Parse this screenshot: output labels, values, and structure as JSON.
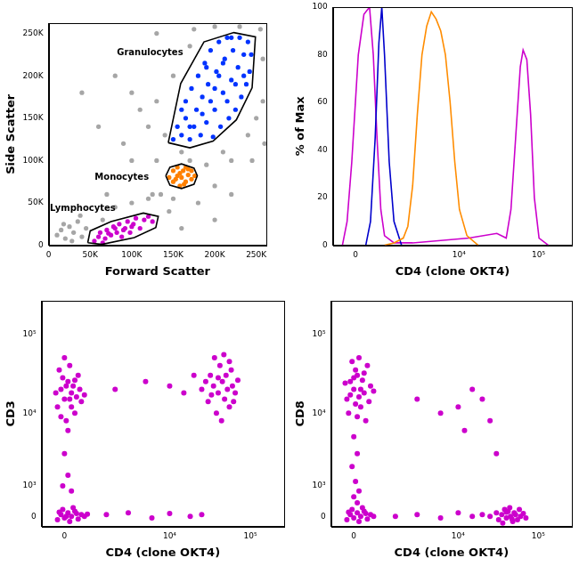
{
  "chart_data": [
    {
      "type": "scatter",
      "x_label": "Forward Scatter",
      "y_label": "Side Scatter",
      "grid": false,
      "tick_labels": true,
      "xlim": [
        0,
        262144
      ],
      "ylim": [
        0,
        262144
      ],
      "xticks": [
        0,
        {
          "value": 50000,
          "label": "50K"
        },
        {
          "value": 100000,
          "label": "100K"
        },
        {
          "value": 150000,
          "label": "150K"
        },
        {
          "value": 200000,
          "label": "200K"
        },
        {
          "value": 250000,
          "label": "250K"
        }
      ],
      "yticks": [
        0,
        {
          "value": 50000,
          "label": "50K"
        },
        {
          "value": 100000,
          "label": "100K"
        },
        {
          "value": 150000,
          "label": "150K"
        },
        {
          "value": 200000,
          "label": "200K"
        },
        {
          "value": 250000,
          "label": "250K"
        }
      ],
      "series": [
        {
          "color": "#a6a6a6",
          "x": [
            10000,
            15000,
            20000,
            25000,
            30000,
            35000,
            40000,
            45000,
            28000,
            18000,
            38000,
            65000,
            80000,
            100000,
            120000,
            135000,
            145000,
            150000,
            160000,
            170000,
            130000,
            140000,
            120000,
            110000,
            100000,
            130000,
            150000,
            170000,
            175000,
            200000,
            230000,
            255000,
            258000,
            258000,
            250000,
            240000,
            260000,
            210000,
            190000,
            200000,
            220000,
            180000,
            125000,
            100000,
            90000,
            60000,
            40000,
            80000,
            70000,
            160000,
            200000,
            220000,
            130000,
            245000
          ],
          "y": [
            12000,
            18000,
            8000,
            22000,
            15000,
            28000,
            10000,
            20000,
            5000,
            25000,
            35000,
            30000,
            45000,
            50000,
            55000,
            60000,
            40000,
            55000,
            110000,
            100000,
            100000,
            130000,
            140000,
            160000,
            180000,
            170000,
            200000,
            235000,
            255000,
            258000,
            258000,
            255000,
            220000,
            170000,
            150000,
            130000,
            120000,
            110000,
            95000,
            70000,
            60000,
            50000,
            60000,
            100000,
            120000,
            140000,
            180000,
            200000,
            60000,
            20000,
            30000,
            100000,
            250000,
            100000
          ]
        },
        {
          "color": "#0033ff",
          "x": [
            150000,
            155000,
            160000,
            165000,
            165000,
            170000,
            172000,
            175000,
            178000,
            180000,
            183000,
            185000,
            188000,
            190000,
            192000,
            195000,
            198000,
            200000,
            202000,
            205000,
            207000,
            210000,
            212000,
            215000,
            217000,
            220000,
            222000,
            225000,
            228000,
            230000,
            232000,
            235000,
            238000,
            240000,
            242000,
            244000,
            195000,
            205000,
            215000,
            225000,
            185000,
            200000,
            210000,
            220000,
            160000,
            170000,
            235000,
            190000
          ],
          "y": [
            125000,
            140000,
            130000,
            150000,
            170000,
            125000,
            185000,
            140000,
            160000,
            200000,
            130000,
            175000,
            215000,
            145000,
            190000,
            230000,
            128000,
            160000,
            205000,
            240000,
            140000,
            180000,
            220000,
            245000,
            150000,
            195000,
            230000,
            160000,
            210000,
            245000,
            175000,
            225000,
            190000,
            240000,
            205000,
            225000,
            170000,
            200000,
            170000,
            190000,
            155000,
            185000,
            215000,
            245000,
            160000,
            140000,
            200000,
            210000
          ]
        },
        {
          "color": "#ff8000",
          "x": [
            145000,
            150000,
            150000,
            155000,
            155000,
            158000,
            160000,
            162000,
            165000,
            165000,
            168000,
            172000,
            172000,
            176000,
            158000,
            153000,
            163000,
            168000
          ],
          "y": [
            80000,
            75000,
            88000,
            82000,
            92000,
            70000,
            80000,
            88000,
            75000,
            92000,
            83000,
            78000,
            88000,
            82000,
            85000,
            78000,
            72000,
            90000
          ]
        },
        {
          "color": "#cc00cc",
          "x": [
            55000,
            60000,
            62000,
            68000,
            70000,
            75000,
            78000,
            82000,
            85000,
            88000,
            92000,
            95000,
            98000,
            102000,
            105000,
            110000,
            115000,
            120000,
            125000,
            65000,
            90000,
            100000,
            80000,
            72000
          ],
          "y": [
            5000,
            10000,
            15000,
            8000,
            18000,
            12000,
            22000,
            15000,
            25000,
            10000,
            20000,
            28000,
            15000,
            25000,
            32000,
            20000,
            30000,
            34000,
            28000,
            3000,
            18000,
            22000,
            20000,
            14000
          ]
        }
      ],
      "gates": [
        {
          "label": "Granulocytes",
          "label_x": 122000,
          "label_y": 227000,
          "x": [
            144000,
            159000,
            187000,
            223000,
            249000,
            245000,
            226000,
            198000,
            170000
          ],
          "y": [
            121000,
            191000,
            240000,
            251000,
            246000,
            186000,
            148000,
            123000,
            115000
          ]
        },
        {
          "label": "Monocytes",
          "label_x": 88000,
          "label_y": 80000,
          "x": [
            141000,
            146000,
            160000,
            175000,
            179000,
            175000,
            160000,
            146000
          ],
          "y": [
            82000,
            92000,
            96000,
            91000,
            82000,
            72000,
            67000,
            71000
          ]
        },
        {
          "label": "Lymphocytes",
          "label_x": 41000,
          "label_y": 43000,
          "x": [
            47000,
            50000,
            75000,
            114000,
            132000,
            129000,
            103000,
            64000
          ],
          "y": [
            3000,
            17000,
            28000,
            38000,
            34000,
            21000,
            9000,
            1000
          ]
        }
      ]
    },
    {
      "type": "line",
      "x_label": "CD4 (clone OKT4)",
      "y_label": "% of Max",
      "grid": false,
      "log": "x",
      "xlim": [
        -700,
        262144
      ],
      "ylim": [
        0,
        100
      ],
      "xticks": [
        0,
        {
          "value": 10000,
          "label": "10⁴"
        },
        {
          "value": 100000,
          "label": "10⁵"
        }
      ],
      "yticks": [
        0,
        20,
        40,
        60,
        80,
        100
      ],
      "series": [
        {
          "color": "#cc00cc",
          "x": [
            -388,
            -246,
            -108,
            81,
            246,
            418,
            538,
            664,
            800,
            942,
            1358,
            2518,
            5850,
            13260,
            29900,
            39200,
            44950,
            51460,
            58950,
            63900,
            71200,
            79400,
            88500,
            101400,
            133000
          ],
          "values": [
            0,
            10,
            35,
            80,
            97,
            100,
            80,
            45,
            15,
            4,
            1,
            1,
            2,
            3,
            5,
            3,
            15,
            45,
            75,
            82,
            78,
            55,
            20,
            3,
            0
          ]
        },
        {
          "color": "#0000cc",
          "x": [
            302,
            448,
            600,
            730,
            837,
            942,
            1138,
            1358,
            1763
          ],
          "values": [
            0,
            10,
            45,
            85,
            100,
            80,
            35,
            10,
            0
          ]
        },
        {
          "color": "#ff8c00",
          "x": [
            942,
            1358,
            1867,
            2166,
            2518,
            2910,
            3350,
            3860,
            4430,
            5100,
            5850,
            6710,
            7700,
            8820,
            10100,
            12560,
            17400
          ],
          "values": [
            0,
            1,
            3,
            8,
            25,
            55,
            80,
            92,
            98,
            95,
            90,
            80,
            60,
            35,
            15,
            4,
            0
          ]
        }
      ]
    },
    {
      "type": "scatter",
      "x_label": "CD4 (clone OKT4)",
      "y_label": "CD3",
      "grid": false,
      "log": true,
      "xlim": [
        -700,
        262144
      ],
      "ylim": [
        -300,
        262144
      ],
      "xticks": [
        0,
        {
          "value": 10000,
          "label": "10⁴"
        },
        {
          "value": 100000,
          "label": "10⁵"
        }
      ],
      "yticks": [
        0,
        {
          "value": 1000,
          "label": "10³"
        },
        {
          "value": 10000,
          "label": "10⁴"
        },
        {
          "value": 100000,
          "label": "10⁵"
        }
      ],
      "series": [
        {
          "color": "#cc00cc",
          "x": [
            -200,
            -100,
            0,
            100,
            200,
            300,
            400,
            500,
            -150,
            50,
            150,
            250,
            350,
            -50,
            450,
            0,
            200,
            100,
            -250,
            300,
            600,
            -100,
            150,
            50,
            25000,
            30000,
            32000,
            35000,
            38000,
            40000,
            42000,
            45000,
            48000,
            50000,
            52000,
            55000,
            58000,
            60000,
            65000,
            70000,
            36000,
            44000,
            47000,
            40000,
            55000,
            28000,
            62000,
            33000,
            -200,
            -100,
            0,
            100,
            200,
            300,
            400,
            500,
            -50,
            150,
            250,
            600,
            50,
            350,
            -150,
            700,
            2000,
            5000,
            10000,
            15000,
            20000,
            1500,
            3000,
            6000,
            10000,
            18000,
            25000,
            0,
            100,
            200,
            -50
          ],
          "y": [
            12000,
            20000,
            15000,
            25000,
            18000,
            10000,
            30000,
            14000,
            35000,
            8000,
            40000,
            22000,
            16000,
            28000,
            20000,
            50000,
            12000,
            6000,
            18000,
            26000,
            17000,
            9000,
            15000,
            22000,
            20000,
            14000,
            30000,
            22000,
            10000,
            18000,
            40000,
            25000,
            15000,
            30000,
            20000,
            12000,
            35000,
            22000,
            18000,
            26000,
            50000,
            8000,
            55000,
            28000,
            45000,
            25000,
            14000,
            17000,
            -100,
            50,
            -50,
            100,
            0,
            150,
            -80,
            50,
            200,
            -150,
            250,
            0,
            0,
            80,
            120,
            60,
            20000,
            25000,
            22000,
            18000,
            30000,
            50,
            100,
            -50,
            80,
            0,
            50,
            3000,
            1500,
            800,
            1000
          ]
        }
      ]
    },
    {
      "type": "scatter",
      "x_label": "CD4 (clone OKT4)",
      "y_label": "CD8",
      "grid": false,
      "log": true,
      "xlim": [
        -700,
        262144
      ],
      "ylim": [
        -300,
        262144
      ],
      "xticks": [
        0,
        {
          "value": 10000,
          "label": "10⁴"
        },
        {
          "value": 100000,
          "label": "10⁵"
        }
      ],
      "yticks": [
        0,
        {
          "value": 1000,
          "label": "10³"
        },
        {
          "value": 10000,
          "label": "10⁴"
        },
        {
          "value": 100000,
          "label": "10⁵"
        }
      ],
      "series": [
        {
          "color": "#cc00cc",
          "x": [
            -200,
            -100,
            0,
            100,
            200,
            300,
            400,
            500,
            -150,
            50,
            150,
            250,
            350,
            -50,
            450,
            0,
            200,
            100,
            -250,
            300,
            600,
            -100,
            150,
            50,
            0,
            100,
            -50,
            50,
            150,
            0,
            100,
            -200,
            -100,
            0,
            100,
            200,
            300,
            400,
            500,
            -50,
            150,
            250,
            600,
            350,
            -150,
            25000,
            30000,
            32000,
            35000,
            38000,
            40000,
            42000,
            45000,
            48000,
            50000,
            52000,
            55000,
            58000,
            60000,
            65000,
            70000,
            36000,
            44000,
            47000,
            40000,
            1500,
            3000,
            6000,
            10000,
            15000,
            20000,
            3000,
            6000,
            10000,
            15000,
            20000,
            12000,
            25000,
            30000
          ],
          "y": [
            15000,
            25000,
            20000,
            30000,
            12000,
            18000,
            40000,
            22000,
            10000,
            35000,
            16000,
            26000,
            8000,
            45000,
            14000,
            28000,
            20000,
            9000,
            24000,
            32000,
            19000,
            17000,
            50000,
            13000,
            5000,
            3000,
            2000,
            1200,
            800,
            600,
            400,
            -100,
            50,
            -50,
            100,
            0,
            150,
            -80,
            50,
            200,
            -150,
            250,
            0,
            80,
            120,
            0,
            100,
            -100,
            50,
            200,
            -50,
            150,
            0,
            -150,
            100,
            50,
            -100,
            200,
            0,
            80,
            -50,
            -200,
            250,
            -80,
            120,
            0,
            50,
            -50,
            100,
            0,
            50,
            15000,
            10000,
            12000,
            20000,
            15000,
            6000,
            8000,
            3000
          ]
        }
      ]
    }
  ]
}
